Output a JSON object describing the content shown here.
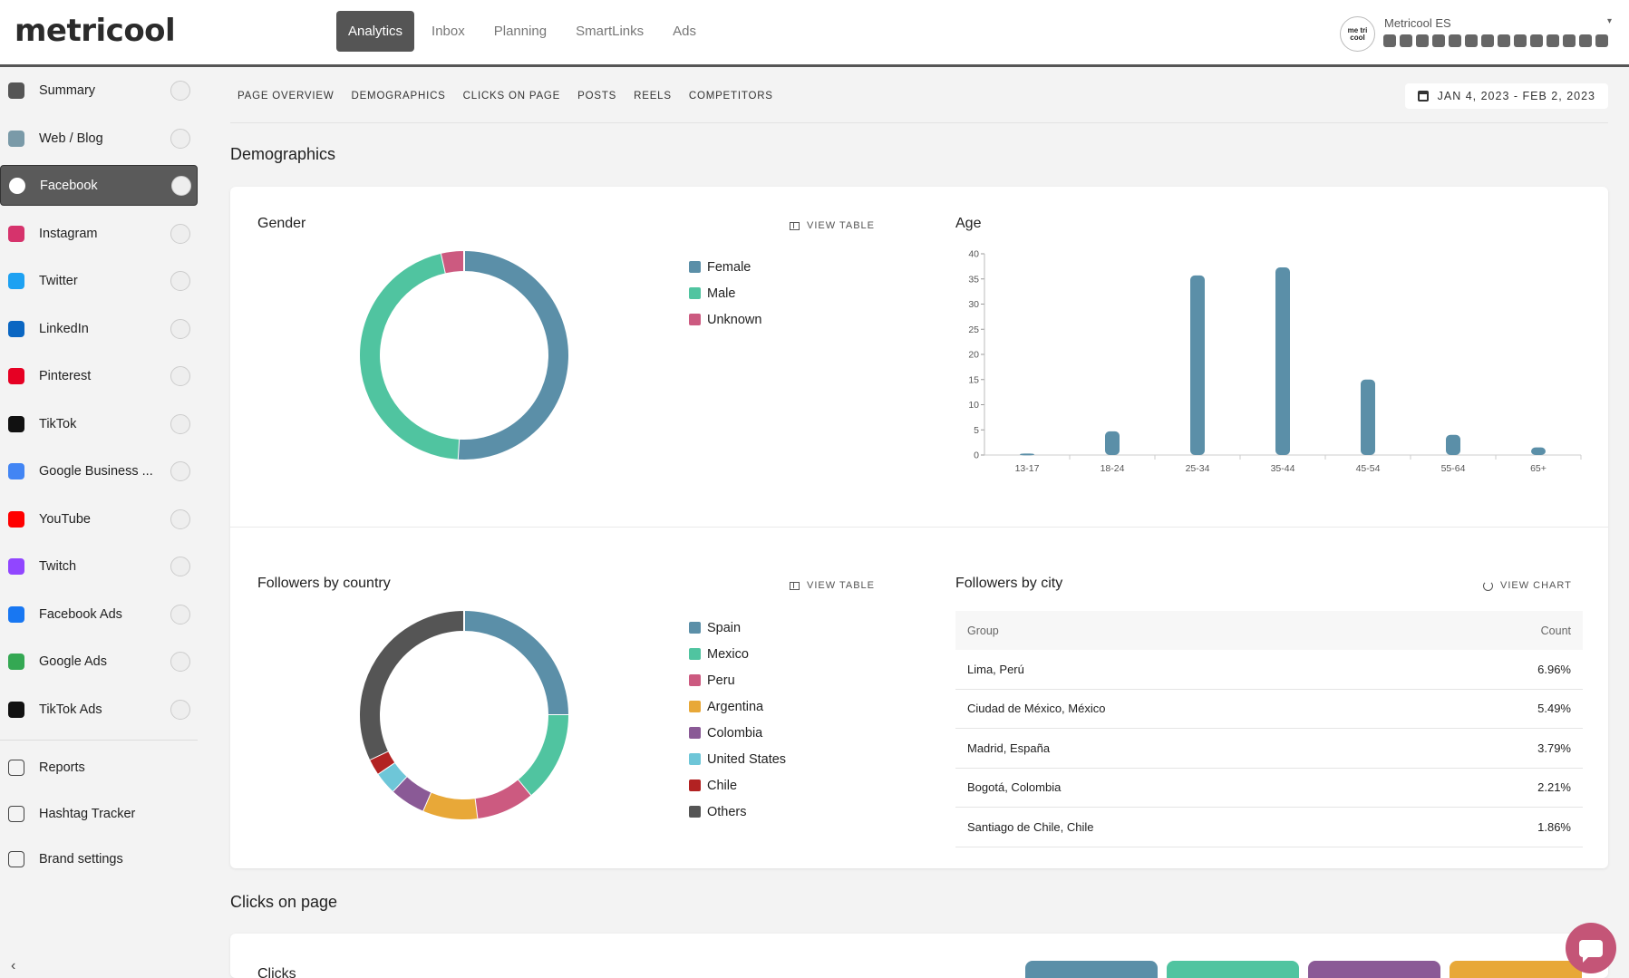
{
  "app": {
    "logo": "metricool"
  },
  "topnav": [
    "Analytics",
    "Inbox",
    "Planning",
    "SmartLinks",
    "Ads"
  ],
  "account": {
    "name": "Metricool ES",
    "avatar_text": "me tri cool"
  },
  "sidebar": {
    "items": [
      {
        "label": "Summary",
        "icon": "clipboard-icon",
        "color": "#555555"
      },
      {
        "label": "Web / Blog",
        "icon": "rss-icon",
        "color": "#7a9aa8"
      },
      {
        "label": "Facebook",
        "icon": "facebook-icon",
        "color": "#ffffff"
      },
      {
        "label": "Instagram",
        "icon": "instagram-icon",
        "color": "#d6336c"
      },
      {
        "label": "Twitter",
        "icon": "twitter-icon",
        "color": "#1da1f2"
      },
      {
        "label": "LinkedIn",
        "icon": "linkedin-icon",
        "color": "#0a66c2"
      },
      {
        "label": "Pinterest",
        "icon": "pinterest-icon",
        "color": "#e60023"
      },
      {
        "label": "TikTok",
        "icon": "tiktok-icon",
        "color": "#111111"
      },
      {
        "label": "Google Business ...",
        "icon": "google-business-icon",
        "color": "#4285f4"
      },
      {
        "label": "YouTube",
        "icon": "youtube-icon",
        "color": "#ff0000"
      },
      {
        "label": "Twitch",
        "icon": "twitch-icon",
        "color": "#9146ff"
      },
      {
        "label": "Facebook Ads",
        "icon": "megaphone-icon",
        "color": "#1877f2"
      },
      {
        "label": "Google Ads",
        "icon": "google-ads-icon",
        "color": "#34a853"
      },
      {
        "label": "TikTok Ads",
        "icon": "tiktok-ads-icon",
        "color": "#111111"
      }
    ],
    "bottom": [
      {
        "label": "Reports",
        "icon": "report-icon"
      },
      {
        "label": "Hashtag Tracker",
        "icon": "hashtag-icon"
      },
      {
        "label": "Brand settings",
        "icon": "sliders-icon"
      }
    ],
    "active_index": 2
  },
  "subnav": {
    "tabs": [
      "PAGE OVERVIEW",
      "DEMOGRAPHICS",
      "CLICKS ON PAGE",
      "POSTS",
      "REELS",
      "COMPETITORS"
    ],
    "date_range": "JAN 4, 2023 - FEB 2, 2023"
  },
  "sections": {
    "demographics": "Demographics",
    "clicks": "Clicks on page",
    "clicks_card": "Clicks"
  },
  "gender": {
    "title": "Gender",
    "view_label": "VIEW TABLE"
  },
  "age": {
    "title": "Age"
  },
  "country": {
    "title": "Followers by country",
    "view_label": "VIEW TABLE"
  },
  "city": {
    "title": "Followers by city",
    "view_label": "VIEW CHART",
    "columns": [
      "Group",
      "Count"
    ],
    "rows": [
      [
        "Lima, Perú",
        "6.96%"
      ],
      [
        "Ciudad de México, México",
        "5.49%"
      ],
      [
        "Madrid, España",
        "3.79%"
      ],
      [
        "Bogotá, Colombia",
        "2.21%"
      ],
      [
        "Santiago de Chile, Chile",
        "1.86%"
      ]
    ]
  },
  "chart_data": [
    {
      "type": "pie",
      "donut": true,
      "categories": [
        "Female",
        "Male",
        "Unknown"
      ],
      "values": [
        51,
        45.5,
        3.5
      ],
      "colors": [
        "#5b8fa8",
        "#50c4a0",
        "#cc5a80"
      ]
    },
    {
      "type": "bar",
      "categories": [
        "13-17",
        "18-24",
        "25-34",
        "35-44",
        "45-54",
        "55-64",
        "65+"
      ],
      "values": [
        0.3,
        4.7,
        35.7,
        37.3,
        15,
        4,
        1.5
      ],
      "yticks": [
        0,
        5,
        10,
        15,
        20,
        25,
        30,
        35,
        40
      ],
      "ylim": [
        0,
        40
      ],
      "color": "#5b8fa8"
    },
    {
      "type": "pie",
      "donut": true,
      "categories": [
        "Spain",
        "Mexico",
        "Peru",
        "Argentina",
        "Colombia",
        "United States",
        "Chile",
        "Others"
      ],
      "values": [
        25,
        14,
        9,
        8.5,
        5.5,
        3.5,
        2.5,
        32
      ],
      "colors": [
        "#5b8fa8",
        "#50c4a0",
        "#cc5a80",
        "#e8a838",
        "#8a5a96",
        "#6ec6d8",
        "#b22222",
        "#555555"
      ]
    }
  ],
  "kpi_colors": [
    "#5b8fa8",
    "#50c4a0",
    "#8a5a96",
    "#e8a838"
  ]
}
